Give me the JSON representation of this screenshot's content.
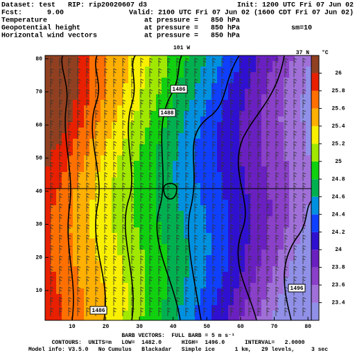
{
  "header": {
    "dataset": "Dataset: test   RIP: rip20020607 d3",
    "init": "Init: 1200 UTC Fri 07 Jun 02",
    "fcst": "Fcst:      9.00",
    "valid": "Valid: 2100 UTC Fri 07 Jun 02 (1600 CDT Fri 07 Jun 02)",
    "fields": [
      {
        "name": "Temperature",
        "level": "at pressure =   850 hPa"
      },
      {
        "name": "Geopotential height",
        "level": "at pressure =   850 hPa"
      },
      {
        "name": "Horizontal wind vectors",
        "level": "at pressure =   850 hPa"
      }
    ],
    "smoothing": "sm=10"
  },
  "map": {
    "longitude_label": "101 W",
    "latitude_label": "37 N",
    "xlim": [
      2,
      81
    ],
    "ylim": [
      1,
      81
    ],
    "xticks": [
      10,
      20,
      30,
      40,
      50,
      60,
      70,
      80
    ],
    "yticks": [
      10,
      20,
      30,
      40,
      50,
      60,
      70,
      80
    ],
    "contour_labels": [
      "1486",
      "1488",
      "1486",
      "1496"
    ]
  },
  "colorbar": {
    "unit": "°C",
    "lim": [
      23.2,
      26.2
    ],
    "ticks": [
      23.4,
      23.6,
      23.8,
      24,
      24.2,
      24.4,
      24.6,
      24.8,
      25,
      25.2,
      25.4,
      25.6,
      25.8,
      26
    ],
    "colors": [
      "#9090e8",
      "#a070d8",
      "#8a40c8",
      "#6a20c0",
      "#3010d0",
      "#1040ff",
      "#0090e0",
      "#00b050",
      "#10d010",
      "#a0e800",
      "#f8f000",
      "#ffb000",
      "#ff7000",
      "#e82000",
      "#904020"
    ]
  },
  "footer": {
    "barbs": "BARB VECTORS:  FULL BARB = 5 m s⁻¹",
    "contours": "CONTOURS:  UNITS=m   LOW=  1482.0      HIGH=  1496.0      INTERVAL=   2.0000",
    "model": "Model info: V3.5.0   No Cumulus   Blackadar   Simple ice      1 km,   29 levels,     3 sec"
  }
}
